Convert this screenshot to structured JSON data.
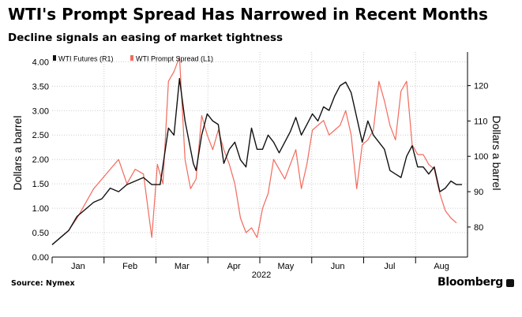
{
  "header": {
    "title": "WTI's Prompt Spread Has Narrowed in Recent Months",
    "subtitle": "Decline signals an easing of market tightness"
  },
  "footer": {
    "source": "Source: Nymex",
    "brand": "Bloomberg"
  },
  "colors": {
    "futures": "#111111",
    "spread": "#f26a5c",
    "grid": "#cccccc",
    "axis": "#000000"
  },
  "chart_data": {
    "type": "line",
    "title": "WTI's Prompt Spread Has Narrowed in Recent Months",
    "subtitle": "Decline signals an easing of market tightness",
    "xlabel": "2022",
    "ylabel_left": "Dollars a barrel",
    "ylabel_right": "Dollars a barrel",
    "x_ticks": [
      "Jan",
      "Feb",
      "Mar",
      "Apr",
      "May",
      "Jun",
      "Jul",
      "Aug"
    ],
    "x_range": [
      0,
      150
    ],
    "y_left": {
      "range": [
        0,
        4.2
      ],
      "ticks": [
        0,
        0.5,
        1,
        1.5,
        2,
        2.5,
        3,
        3.5,
        4
      ],
      "tick_labels": [
        "0.00",
        "0.50",
        "1.00",
        "1.50",
        "2.00",
        "2.50",
        "3.00",
        "3.50",
        "4.00"
      ]
    },
    "y_right": {
      "range": [
        71.5,
        129.5
      ],
      "ticks": [
        80,
        90,
        100,
        110,
        120
      ],
      "tick_labels": [
        "80",
        "90",
        "100",
        "110",
        "120"
      ]
    },
    "legend": {
      "placement": "top-left",
      "entries": [
        "WTI Futures (R1)",
        "WTI Prompt Spread (L1)"
      ]
    },
    "series": [
      {
        "name": "WTI Futures (R1)",
        "axis": "right",
        "x": [
          0,
          3,
          6,
          9,
          12,
          15,
          18,
          21,
          24,
          27,
          30,
          33,
          36,
          39,
          42,
          44,
          46,
          48,
          49,
          51,
          52,
          54,
          56,
          58,
          60,
          62,
          64,
          66,
          68,
          70,
          72,
          74,
          76,
          78,
          80,
          82,
          84,
          86,
          88,
          90,
          92,
          94,
          96,
          98,
          100,
          102,
          104,
          106,
          108,
          110,
          112,
          114,
          116,
          118,
          120,
          122,
          124,
          126,
          128,
          130,
          132,
          134,
          136,
          138,
          140,
          142,
          144,
          146,
          148
        ],
        "values": [
          75,
          77,
          79,
          83,
          85,
          87,
          88,
          91,
          90,
          92,
          93,
          94,
          92,
          92,
          108,
          106,
          122,
          110,
          106,
          98,
          96,
          106,
          112,
          110,
          109,
          98,
          102,
          104,
          99,
          97,
          108,
          102,
          102,
          106,
          104,
          101,
          104,
          107,
          111,
          106,
          109,
          112,
          110,
          114,
          113,
          117,
          120,
          121,
          118,
          111,
          104,
          110,
          106,
          104,
          102,
          96,
          95,
          94,
          100,
          103,
          97,
          97,
          95,
          97,
          90,
          91,
          93,
          92,
          92
        ]
      },
      {
        "name": "WTI Prompt Spread (L1)",
        "axis": "left",
        "x": [
          0,
          3,
          6,
          9,
          12,
          15,
          18,
          21,
          24,
          27,
          30,
          33,
          36,
          38,
          40,
          42,
          44,
          46,
          48,
          50,
          52,
          54,
          56,
          58,
          60,
          62,
          64,
          66,
          68,
          70,
          72,
          74,
          76,
          78,
          80,
          82,
          84,
          86,
          88,
          90,
          92,
          94,
          96,
          98,
          100,
          102,
          104,
          106,
          108,
          110,
          112,
          114,
          116,
          118,
          120,
          122,
          124,
          126,
          128,
          130,
          132,
          134,
          136,
          138,
          140,
          142,
          144,
          146
        ],
        "values": [
          0.25,
          0.4,
          0.55,
          0.8,
          1.1,
          1.4,
          1.6,
          1.8,
          2.0,
          1.5,
          1.8,
          1.7,
          0.4,
          1.9,
          1.5,
          3.6,
          3.8,
          4.1,
          2.0,
          1.4,
          1.6,
          2.9,
          2.5,
          2.2,
          2.6,
          2.2,
          1.9,
          1.5,
          0.8,
          0.5,
          0.6,
          0.4,
          1.0,
          1.3,
          2.0,
          1.8,
          1.6,
          1.9,
          2.2,
          1.4,
          1.9,
          2.6,
          2.7,
          2.8,
          2.5,
          2.6,
          2.7,
          3.0,
          2.5,
          1.4,
          2.3,
          2.4,
          2.6,
          3.6,
          3.2,
          2.7,
          2.4,
          3.4,
          3.6,
          2.3,
          2.1,
          2.1,
          1.9,
          1.8,
          1.3,
          0.95,
          0.8,
          0.7
        ]
      }
    ]
  }
}
